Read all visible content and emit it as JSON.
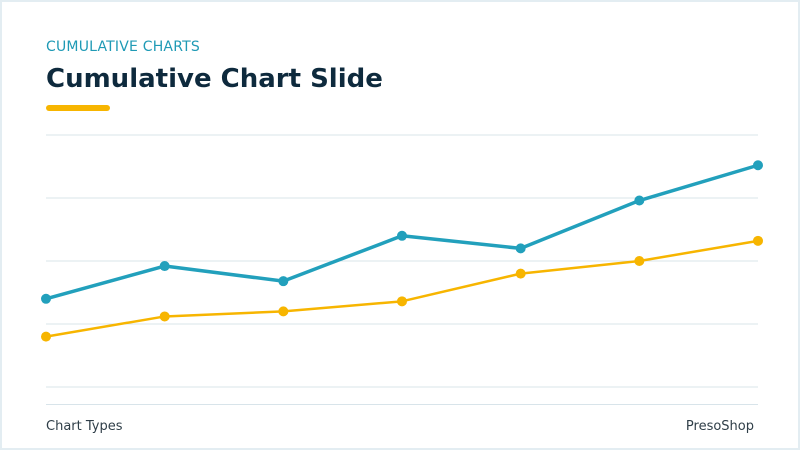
{
  "slide": {
    "kicker": "CUMULATIVE CHARTS",
    "title": "Cumulative Chart Slide",
    "footer_left": "Chart Types",
    "footer_right": "PresoShop"
  },
  "colors": {
    "accent": "#f7b500",
    "teal": "#22a0bc",
    "gold": "#f7b500",
    "grid": "#d8e4ea",
    "title": "#0e2a3d"
  },
  "chart_data": {
    "type": "line",
    "title": "",
    "xlabel": "",
    "ylabel": "",
    "x": [
      1,
      2,
      3,
      4,
      5,
      6,
      7
    ],
    "ylim": [
      0,
      100
    ],
    "grid": true,
    "legend": "none",
    "series": [
      {
        "color": "#22a0bc",
        "values": [
          35,
          48,
          42,
          60,
          55,
          74,
          88
        ]
      },
      {
        "color": "#f7b500",
        "values": [
          20,
          28,
          30,
          34,
          45,
          50,
          58
        ]
      }
    ]
  }
}
